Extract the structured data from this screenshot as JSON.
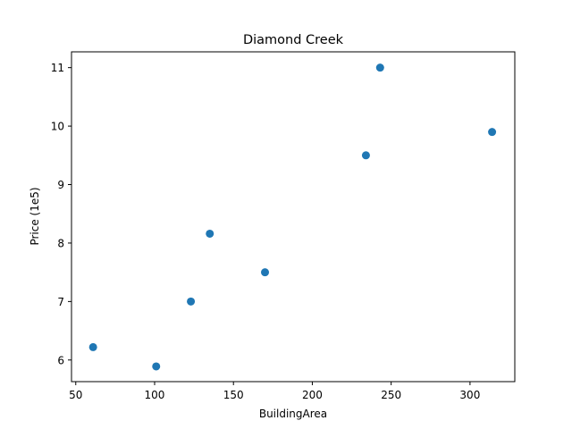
{
  "chart_data": {
    "type": "scatter",
    "title": "Diamond Creek",
    "xlabel": "BuildingArea",
    "ylabel": "Price (1e5)",
    "xlim": [
      47.3,
      328.4
    ],
    "ylim": [
      5.63,
      11.27
    ],
    "xticks": [
      50,
      100,
      150,
      200,
      250,
      300
    ],
    "yticks": [
      6,
      7,
      8,
      9,
      10,
      11
    ],
    "grid": false,
    "marker_color": "#1f77b4",
    "points": [
      {
        "x": 61,
        "y": 6.22
      },
      {
        "x": 101,
        "y": 5.89
      },
      {
        "x": 123,
        "y": 7.0
      },
      {
        "x": 135,
        "y": 8.16
      },
      {
        "x": 170,
        "y": 7.5
      },
      {
        "x": 234,
        "y": 9.5
      },
      {
        "x": 243,
        "y": 11.0
      },
      {
        "x": 314,
        "y": 9.9
      }
    ]
  }
}
